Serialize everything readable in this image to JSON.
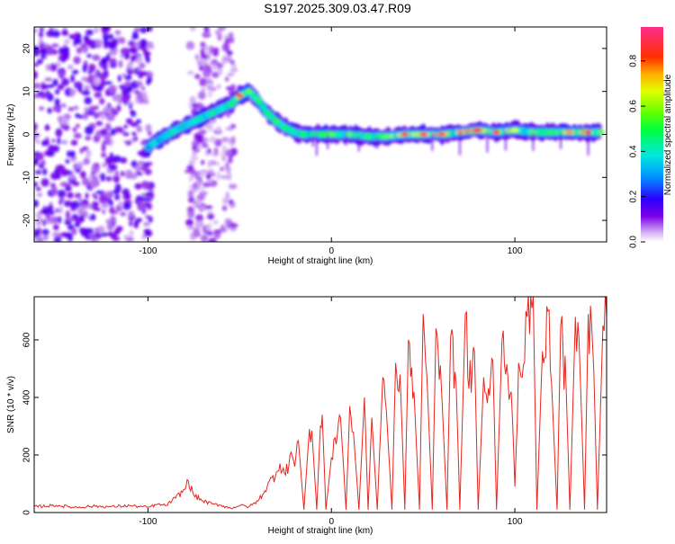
{
  "title": "S197.2025.309.03.47.R09",
  "colorbar": {
    "label": "Normalized spectral amplitude",
    "ticks": [
      "0.0",
      "0.2",
      "0.4",
      "0.6",
      "0.8"
    ],
    "tick_values": [
      0.0,
      0.2,
      0.4,
      0.6,
      0.8
    ],
    "range": [
      0,
      0.95
    ]
  },
  "chart_data": [
    {
      "type": "heatmap",
      "name": "spectrogram",
      "xlabel": "Height of straight line (km)",
      "ylabel": "Frequency (Hz)",
      "xlim": [
        -162,
        150
      ],
      "ylim": [
        -25,
        25
      ],
      "xticks": [
        -100,
        0,
        100
      ],
      "xtick_labels": [
        "-100",
        "0",
        "100"
      ],
      "yticks": [
        -20,
        -10,
        0,
        10,
        20
      ],
      "ytick_labels": [
        "-20",
        "-10",
        "0",
        "10",
        "20"
      ],
      "ridge": {
        "x": [
          -100,
          -93,
          -85,
          -75,
          -65,
          -55,
          -50,
          -45,
          -40,
          -35,
          -30,
          -25,
          -20,
          -15,
          -10,
          -5,
          0,
          10,
          20,
          30,
          40,
          50,
          60,
          70,
          80,
          90,
          100,
          110,
          120,
          130,
          140,
          147
        ],
        "frequency": [
          -3,
          -1,
          1,
          3,
          5,
          7,
          9,
          10,
          8,
          5,
          3,
          1.5,
          0.5,
          0,
          0,
          0,
          0,
          0,
          -0.5,
          -0.5,
          0,
          0,
          0,
          0.5,
          1,
          0.5,
          1,
          0.5,
          0.5,
          0.5,
          0.5,
          0.5
        ],
        "peak_amplitude": [
          0.3,
          0.35,
          0.4,
          0.4,
          0.45,
          0.5,
          0.9,
          0.6,
          0.55,
          0.5,
          0.55,
          0.5,
          0.45,
          0.5,
          0.5,
          0.55,
          0.6,
          0.6,
          0.55,
          0.6,
          0.9,
          0.95,
          0.85,
          0.8,
          0.9,
          0.85,
          0.7,
          0.6,
          0.55,
          0.8,
          0.9,
          0.6
        ]
      },
      "noise_regions": [
        {
          "x_range": [
            -162,
            -98
          ],
          "frequency_range": [
            -25,
            25
          ],
          "amplitude": 0.15
        },
        {
          "x_range": [
            -78,
            -53
          ],
          "frequency_range": [
            -25,
            25
          ],
          "amplitude": 0.1
        }
      ]
    },
    {
      "type": "line",
      "name": "snr",
      "xlabel": "Height of straight line (km)",
      "ylabel": "SNR (10 * v/v)",
      "xlim": [
        -162,
        150
      ],
      "ylim": [
        0,
        750
      ],
      "xticks": [
        -100,
        0,
        100
      ],
      "xtick_labels": [
        "-100",
        "0",
        "100"
      ],
      "yticks": [
        0,
        200,
        400,
        600
      ],
      "ytick_labels": [
        "0",
        "200",
        "400",
        "600"
      ],
      "color": "#e8251d",
      "series": [
        {
          "name": "SNR",
          "x": [
            -162,
            -150,
            -140,
            -130,
            -120,
            -110,
            -100,
            -95,
            -90,
            -85,
            -80,
            -78,
            -75,
            -70,
            -65,
            -60,
            -55,
            -50,
            -45,
            -40,
            -35,
            -30,
            -28,
            -25,
            -22,
            -20,
            -18,
            -15,
            -12,
            -10,
            -8,
            -6,
            -5,
            -3,
            0,
            2,
            5,
            8,
            10,
            12,
            15,
            18,
            20,
            22,
            25,
            28,
            30,
            33,
            35,
            38,
            40,
            42,
            45,
            48,
            50,
            52,
            55,
            57,
            60,
            63,
            65,
            68,
            70,
            73,
            75,
            78,
            80,
            83,
            85,
            88,
            90,
            93,
            95,
            98,
            100,
            102,
            104,
            106,
            108,
            110,
            112,
            115,
            118,
            120,
            123,
            125,
            128,
            130,
            133,
            135,
            138,
            140,
            143,
            145,
            148,
            150
          ],
          "y": [
            20,
            25,
            18,
            22,
            20,
            24,
            18,
            28,
            25,
            50,
            80,
            110,
            60,
            40,
            30,
            25,
            15,
            25,
            20,
            40,
            90,
            140,
            170,
            130,
            210,
            160,
            250,
            10,
            290,
            220,
            10,
            300,
            340,
            10,
            190,
            260,
            330,
            10,
            370,
            280,
            10,
            400,
            10,
            330,
            10,
            470,
            350,
            10,
            520,
            380,
            10,
            600,
            420,
            10,
            690,
            480,
            10,
            640,
            430,
            10,
            610,
            450,
            10,
            690,
            430,
            560,
            10,
            470,
            380,
            530,
            10,
            600,
            480,
            420,
            90,
            520,
            470,
            700,
            620,
            750,
            10,
            560,
            700,
            450,
            10,
            650,
            420,
            10,
            680,
            600,
            10,
            690,
            500,
            10,
            650,
            680
          ]
        }
      ]
    }
  ]
}
